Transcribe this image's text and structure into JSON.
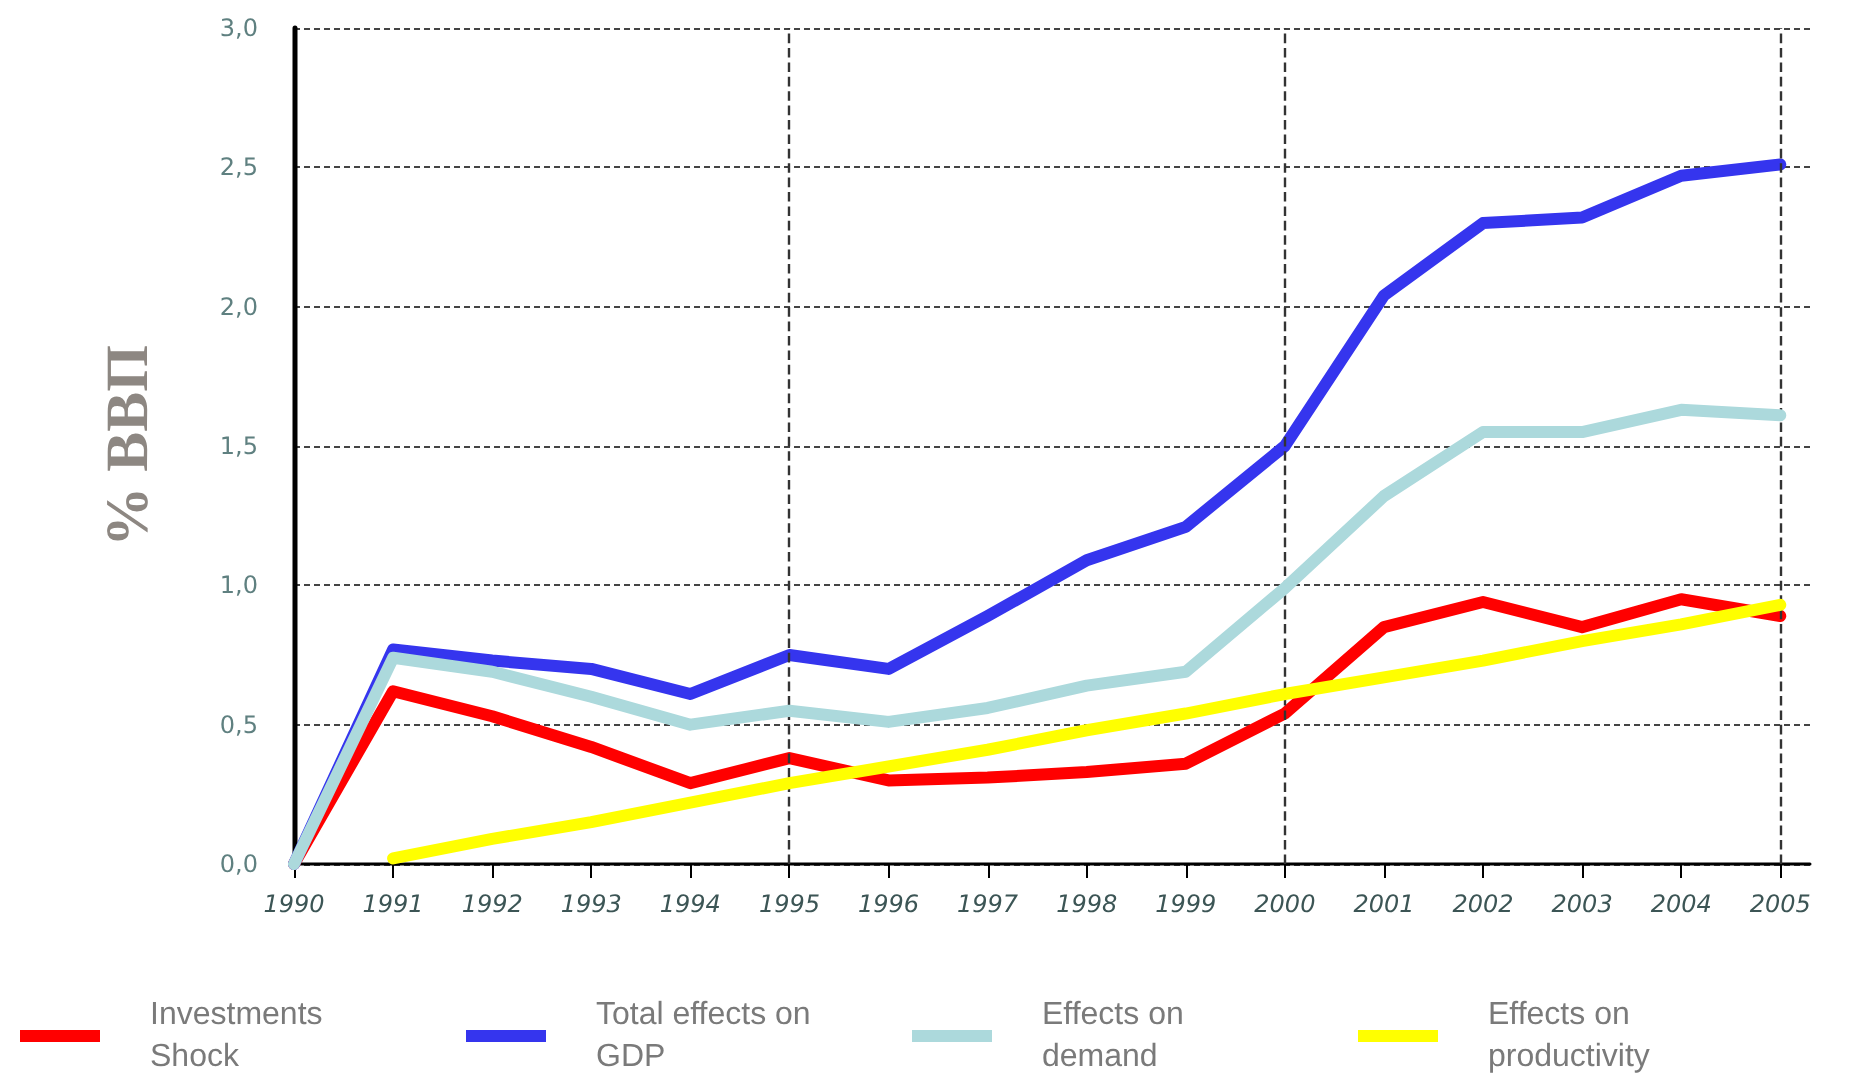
{
  "chart_data": {
    "type": "line",
    "ylabel": "% ВВП",
    "x": [
      1990,
      1991,
      1992,
      1993,
      1994,
      1995,
      1996,
      1997,
      1998,
      1999,
      2000,
      2001,
      2002,
      2003,
      2004,
      2005
    ],
    "series": [
      {
        "name": "Investments Shock",
        "color": "#ff0000",
        "values": [
          0,
          0.62,
          0.53,
          0.42,
          0.29,
          0.38,
          0.3,
          0.31,
          0.33,
          0.36,
          0.54,
          0.85,
          0.94,
          0.85,
          0.95,
          0.89
        ]
      },
      {
        "name": "Total effects on GDP",
        "color": "#3535ee",
        "values": [
          0,
          0.77,
          0.73,
          0.7,
          0.61,
          0.75,
          0.7,
          0.89,
          1.09,
          1.21,
          1.5,
          2.04,
          2.3,
          2.32,
          2.47,
          2.51
        ]
      },
      {
        "name": "Effects on demand",
        "color": "#acd9dc",
        "values": [
          0,
          0.74,
          0.69,
          0.6,
          0.5,
          0.55,
          0.51,
          0.56,
          0.64,
          0.69,
          0.99,
          1.32,
          1.55,
          1.55,
          1.63,
          1.61
        ]
      },
      {
        "name": "Effects on productivity",
        "color": "#ffff00",
        "values": [
          null,
          0.02,
          0.09,
          0.15,
          0.22,
          0.29,
          0.35,
          0.41,
          0.48,
          0.54,
          0.61,
          0.67,
          0.73,
          0.8,
          0.86,
          0.93
        ]
      }
    ],
    "xlim": [
      1990,
      2005.3
    ],
    "xticks": [
      1990,
      1991,
      1992,
      1993,
      1994,
      1995,
      1996,
      1997,
      1998,
      1999,
      2000,
      2001,
      2002,
      2003,
      2004,
      2005
    ],
    "ylim": [
      0,
      3
    ],
    "yticks": [
      {
        "value": 0,
        "label": "0,0"
      },
      {
        "value": 0.5,
        "label": "0,5"
      },
      {
        "value": 1,
        "label": "1,0"
      },
      {
        "value": 1.5,
        "label": "1,5"
      },
      {
        "value": 2,
        "label": "2,0"
      },
      {
        "value": 2.5,
        "label": "2,5"
      },
      {
        "value": 3,
        "label": "3,0"
      }
    ],
    "grid": "y",
    "legend": "bottom",
    "marker": "none",
    "line_style": "solid",
    "ref_lines": [
      {
        "axis": "x",
        "value": 1995,
        "color": "#333333",
        "line_style": "dashed"
      },
      {
        "axis": "x",
        "value": 2000,
        "color": "#333333",
        "line_style": "dashed"
      },
      {
        "axis": "x",
        "value": 2005,
        "color": "#333333",
        "line_style": "dashed"
      }
    ]
  }
}
